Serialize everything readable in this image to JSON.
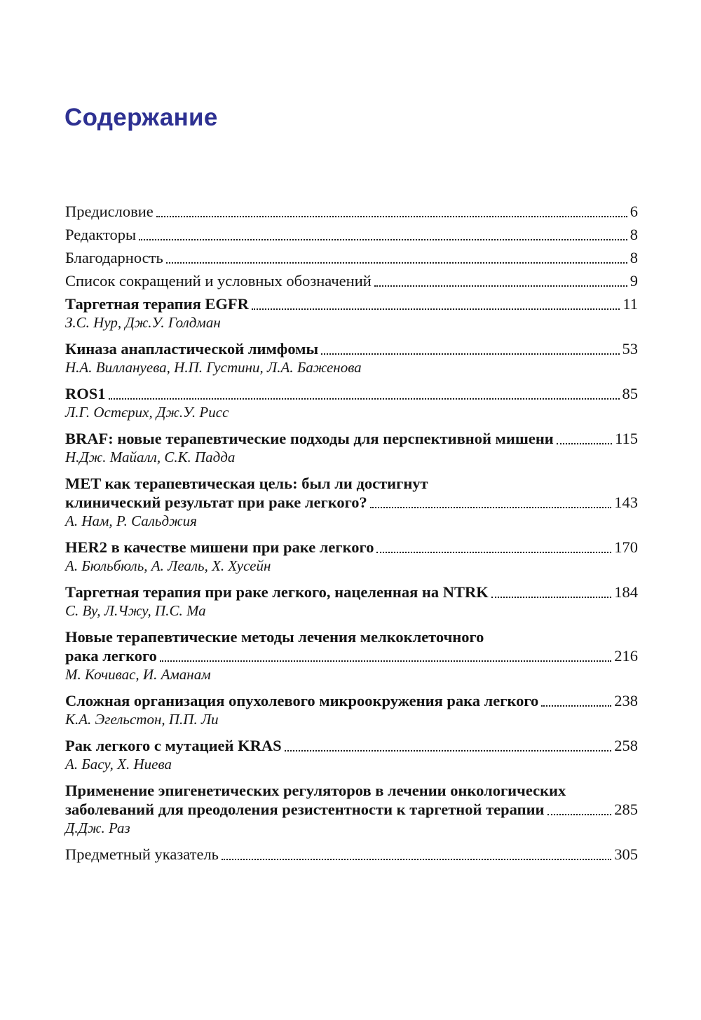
{
  "page": {
    "title": "Содержание",
    "accent_color": "#2e3192",
    "text_color": "#141414"
  },
  "toc": {
    "entries": [
      {
        "title_lines": [
          "Предисловие"
        ],
        "page": "6",
        "bold": false,
        "authors": ""
      },
      {
        "title_lines": [
          "Редакторы"
        ],
        "page": "8",
        "bold": false,
        "authors": ""
      },
      {
        "title_lines": [
          "Благодарность"
        ],
        "page": "8",
        "bold": false,
        "authors": ""
      },
      {
        "title_lines": [
          "Список сокращений и условных обозначений"
        ],
        "page": "9",
        "bold": false,
        "authors": ""
      },
      {
        "title_lines": [
          "Таргетная терапия EGFR"
        ],
        "page": "11",
        "bold": true,
        "authors": "З.С. Нур, Дж.У. Голдман"
      },
      {
        "title_lines": [
          "Киназа анапластической лимфомы"
        ],
        "page": "53",
        "bold": true,
        "authors": "Н.А. Виллануева, Н.П. Густини, Л.А. Баженова"
      },
      {
        "title_lines": [
          "ROS1"
        ],
        "page": "85",
        "bold": true,
        "authors": "Л.Г. Остєрих, Дж.У. Рисс"
      },
      {
        "title_lines": [
          "BRAF: новые терапевтические подходы для перспективной мишени"
        ],
        "page": "115",
        "bold": true,
        "authors": "Н.Дж. Майалл, С.К. Падда"
      },
      {
        "title_lines": [
          "MET как терапевтическая цель: был ли достигнут",
          "клинический результат при раке легкого?"
        ],
        "page": "143",
        "bold": true,
        "authors": "А. Нам, Р. Сальджия"
      },
      {
        "title_lines": [
          "HER2 в качестве мишени при раке легкого"
        ],
        "page": "170",
        "bold": true,
        "authors": "А. Бюльбюль, А. Леаль, Х. Хусейн"
      },
      {
        "title_lines": [
          "Таргетная терапия при раке легкого, нацеленная на NTRK"
        ],
        "page": "184",
        "bold": true,
        "authors": "С. Ву, Л.Чжу, П.С. Ма"
      },
      {
        "title_lines": [
          "Новые терапевтические методы лечения мелкоклеточного",
          "рака легкого"
        ],
        "page": "216",
        "bold": true,
        "authors": "М. Кочивас, И. Аманам"
      },
      {
        "title_lines": [
          "Сложная организация опухолевого микроокружения рака легкого"
        ],
        "page": "238",
        "bold": true,
        "authors": "К.А. Эгельстон, П.П. Ли"
      },
      {
        "title_lines": [
          "Рак легкого с мутацией KRAS"
        ],
        "page": "258",
        "bold": true,
        "authors": "А. Басу, Х. Ниева"
      },
      {
        "title_lines": [
          "Применение эпигенетических регуляторов в лечении онкологических",
          "заболеваний для преодоления резистентности к таргетной терапии"
        ],
        "page": "285",
        "bold": true,
        "authors": "Д.Дж. Раз"
      },
      {
        "title_lines": [
          "Предметный указатель"
        ],
        "page": "305",
        "bold": false,
        "authors": ""
      }
    ]
  }
}
